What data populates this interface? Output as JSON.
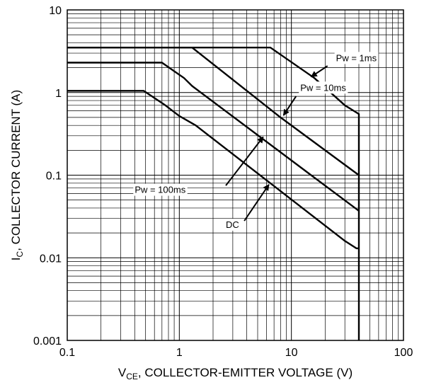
{
  "chart_data": {
    "type": "line",
    "xlabel": {
      "main": "V",
      "sub": "CE",
      "rest": ", COLLECTOR-EMITTER VOLTAGE (V)"
    },
    "ylabel": {
      "main": "I",
      "sub": "C",
      "rest": ", COLLECTOR CURRENT (A)"
    },
    "x_scale": "log",
    "y_scale": "log",
    "xlim": [
      0.1,
      100
    ],
    "ylim": [
      0.001,
      10
    ],
    "grid": true,
    "x_ticks": [
      {
        "value": 0.1,
        "label": "0.1"
      },
      {
        "value": 1,
        "label": "1"
      },
      {
        "value": 10,
        "label": "10"
      },
      {
        "value": 100,
        "label": "100"
      }
    ],
    "y_ticks": [
      {
        "value": 10,
        "label": "10"
      },
      {
        "value": 1,
        "label": "1"
      },
      {
        "value": 0.1,
        "label": "0.1"
      },
      {
        "value": 0.01,
        "label": "0.01"
      },
      {
        "value": 0.001,
        "label": "0.001"
      }
    ],
    "series": [
      {
        "id": "pw-1ms",
        "label": "Pw = 1ms",
        "x": [
          0.1,
          6.5,
          16,
          30,
          40,
          40
        ],
        "y": [
          3.5,
          3.5,
          1.5,
          0.7,
          0.55,
          0.001
        ]
      },
      {
        "id": "pw-10ms",
        "label": "Pw = 10ms",
        "x": [
          0.1,
          1.3,
          8,
          40
        ],
        "y": [
          3.5,
          3.5,
          0.5,
          0.1
        ]
      },
      {
        "id": "pw-100ms",
        "label": "Pw = 100ms",
        "x": [
          0.1,
          0.7,
          1.1,
          1.3,
          15,
          40
        ],
        "y": [
          2.3,
          2.3,
          1.5,
          1.2,
          0.1,
          0.037
        ]
      },
      {
        "id": "dc",
        "label": "DC",
        "x": [
          0.1,
          0.48,
          0.75,
          1.0,
          1.4,
          30,
          38,
          40
        ],
        "y": [
          1.05,
          1.05,
          0.7,
          0.52,
          0.4,
          0.016,
          0.013,
          0.013
        ]
      }
    ],
    "annotations": [
      {
        "id": "annot-1ms",
        "text": "Pw = 1ms",
        "text_x": 25,
        "text_y": 2.4,
        "arrow_from_x": 21,
        "arrow_from_y": 2.1,
        "arrow_to_x": 15,
        "arrow_to_y": 1.55
      },
      {
        "id": "annot-10ms",
        "text": "Pw = 10ms",
        "text_x": 12,
        "text_y": 1.05,
        "arrow_from_x": 11,
        "arrow_from_y": 0.9,
        "arrow_to_x": 8.5,
        "arrow_to_y": 0.53
      },
      {
        "id": "annot-100ms",
        "text": "Pw = 100ms",
        "text_x": 0.4,
        "text_y": 0.061,
        "arrow_from_x": 2.6,
        "arrow_from_y": 0.075,
        "arrow_to_x": 5.6,
        "arrow_to_y": 0.29
      },
      {
        "id": "annot-dc",
        "text": "DC",
        "text_x": 2.6,
        "text_y": 0.023,
        "arrow_from_x": 3.8,
        "arrow_from_y": 0.028,
        "arrow_to_x": 6.3,
        "arrow_to_y": 0.077
      }
    ]
  }
}
